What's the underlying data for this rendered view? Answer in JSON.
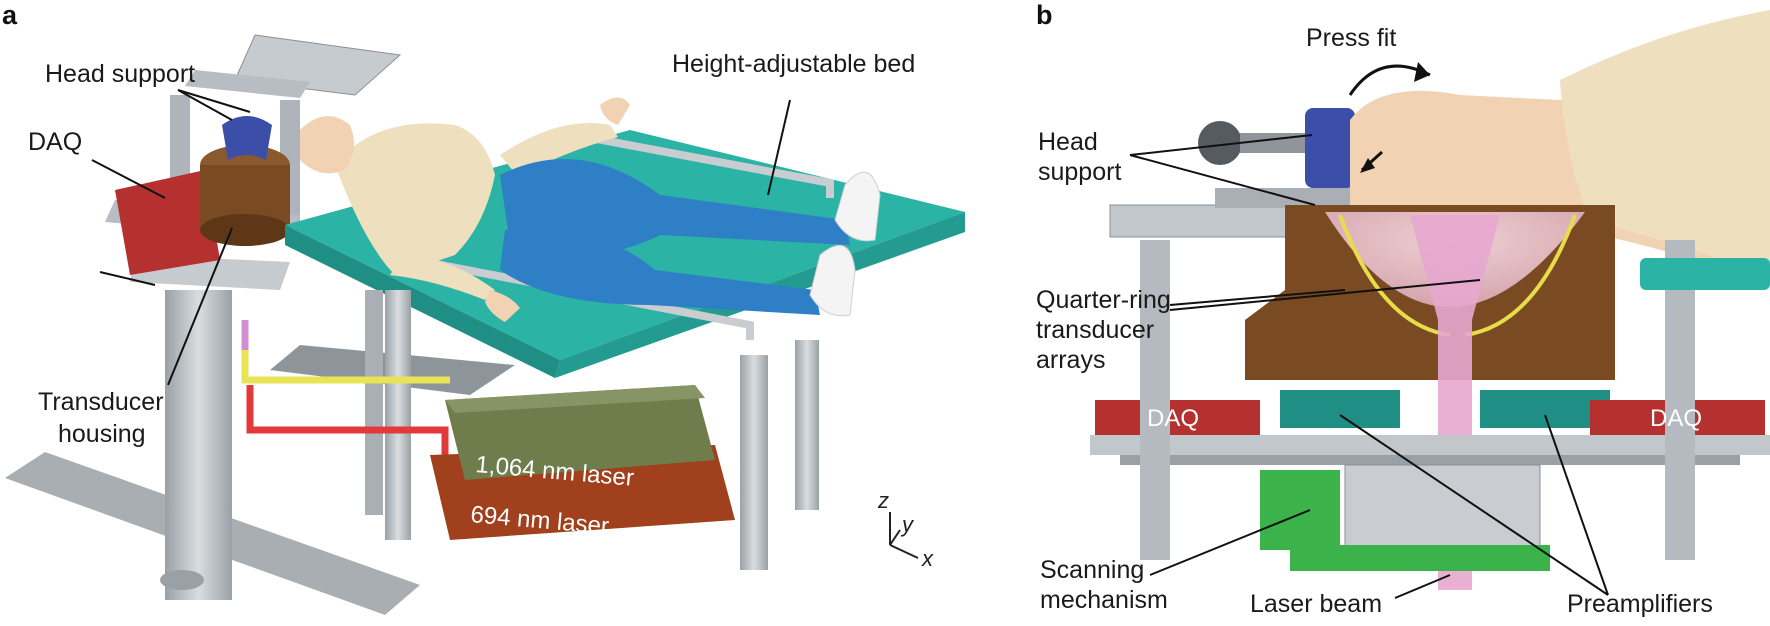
{
  "panel_a": {
    "letter": "a",
    "labels": {
      "head_support": "Head support",
      "daq": "DAQ",
      "height_adjustable_bed": "Height-adjustable bed",
      "transducer_housing_line1": "Transducer",
      "transducer_housing_line2": "housing",
      "laser_1064": "1,064 nm laser",
      "laser_694": "694 nm laser"
    },
    "axes": {
      "z": "z",
      "y": "y",
      "x": "x"
    }
  },
  "panel_b": {
    "letter": "b",
    "labels": {
      "press_fit": "Press fit",
      "head_support_line1": "Head",
      "head_support_line2": "support",
      "quarter_ring_line1": "Quarter-ring",
      "quarter_ring_line2": "transducer",
      "quarter_ring_line3": "arrays",
      "daq_left": "DAQ",
      "daq_right": "DAQ",
      "scanning_line1": "Scanning",
      "scanning_line2": "mechanism",
      "laser_beam": "Laser beam",
      "preamplifiers": "Preamplifiers"
    }
  },
  "colors": {
    "bed": "#2bb3a6",
    "frame": "#b9bfc4",
    "skin": "#f1d3b3",
    "shirt": "#eee0bf",
    "pants": "#2f7fc7",
    "daq": "#b4312f",
    "laser_1064": "#6f7d4d",
    "laser_694": "#a0401c",
    "housing": "#7a4a22",
    "beam": "#e7a7cf",
    "scanning": "#3bb34a",
    "head_support": "#3b4fa8"
  }
}
